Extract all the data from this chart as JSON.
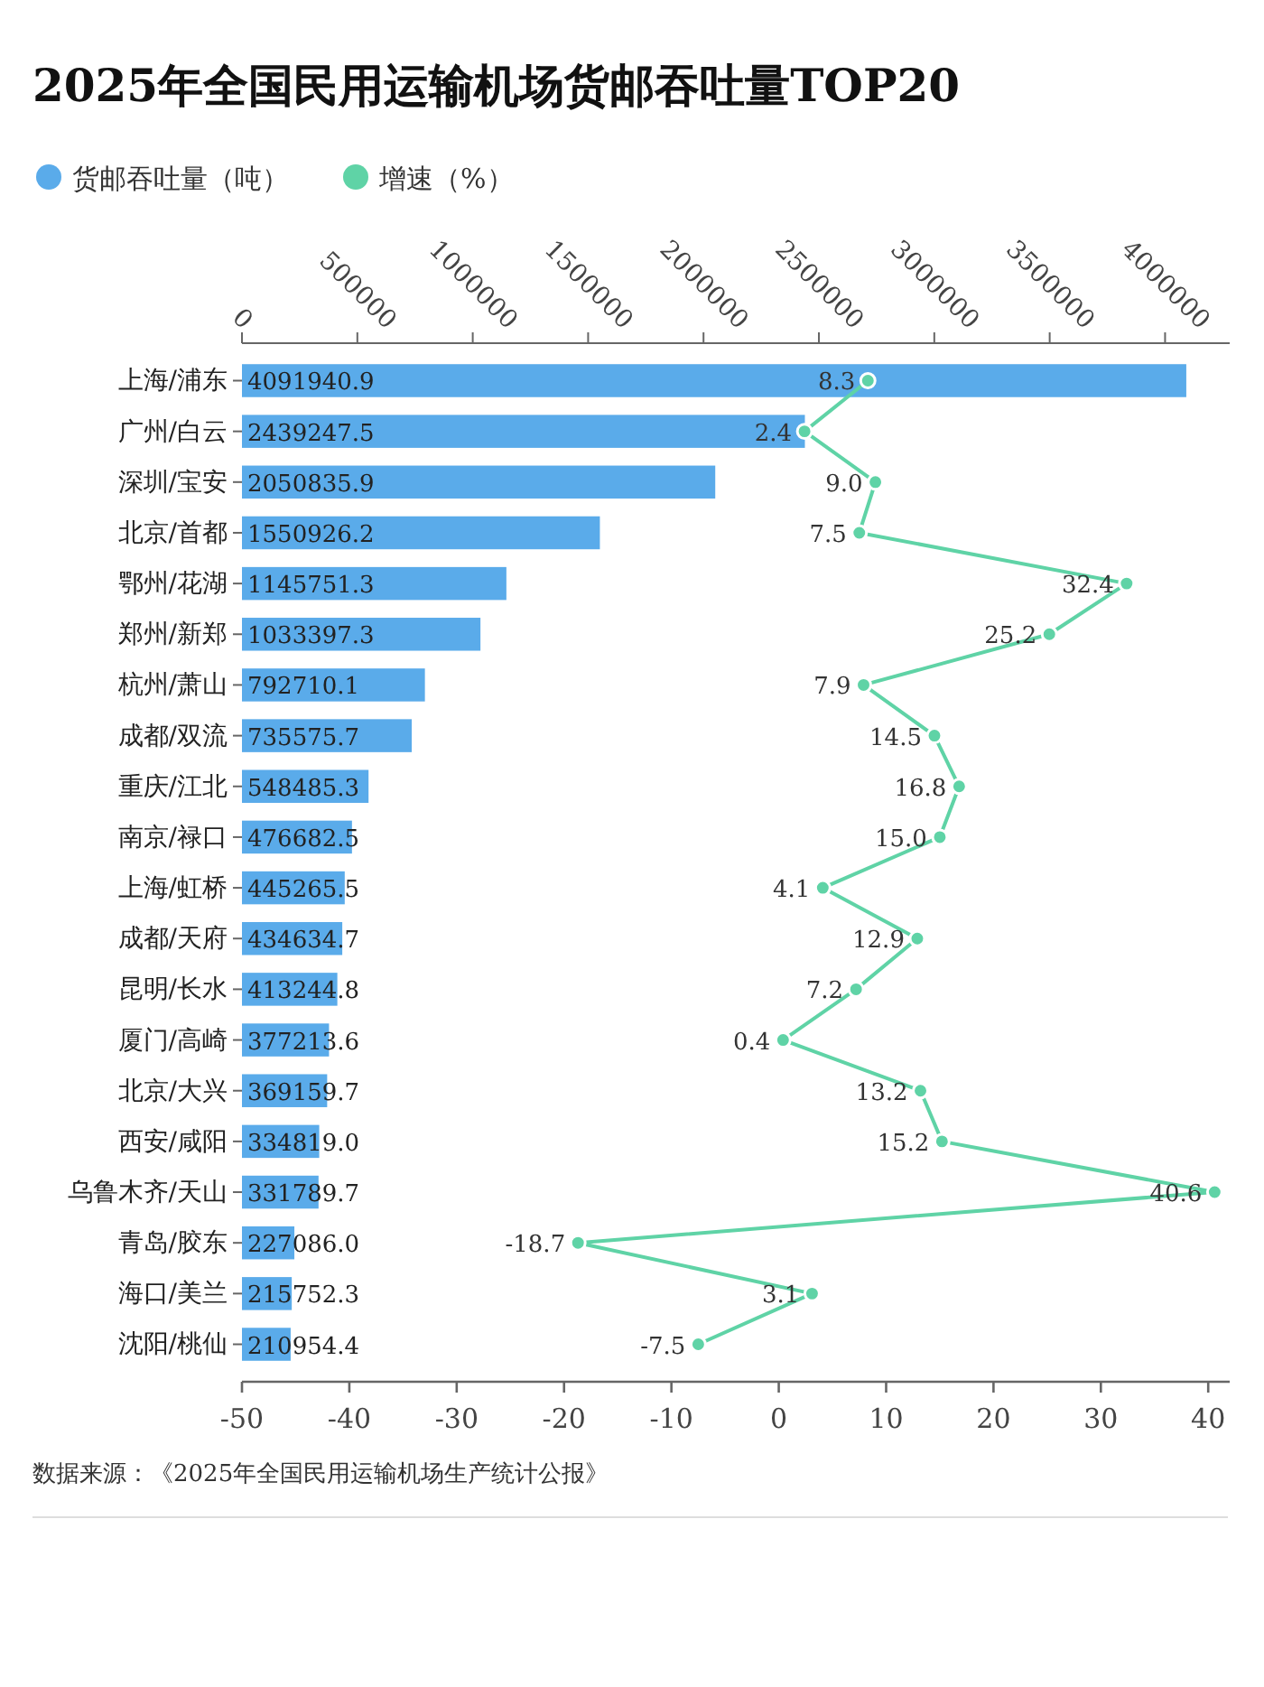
{
  "chart_data": {
    "type": "bar",
    "orientation": "horizontal",
    "title": "2025年全国民用运输机场货邮吞吐量TOP20",
    "categories": [
      "上海/浦东",
      "广州/白云",
      "深圳/宝安",
      "北京/首都",
      "鄂州/花湖",
      "郑州/新郑",
      "杭州/萧山",
      "成都/双流",
      "重庆/江北",
      "南京/禄口",
      "上海/虹桥",
      "成都/天府",
      "昆明/长水",
      "厦门/高崎",
      "北京/大兴",
      "西安/咸阳",
      "乌鲁木齐/天山",
      "青岛/胶东",
      "海口/美兰",
      "沈阳/桃仙"
    ],
    "series": [
      {
        "name": "货邮吞吐量（吨）",
        "axis": "x2",
        "color": "#5aabea",
        "values": [
          4091940.9,
          2439247.5,
          2050835.9,
          1550926.2,
          1145751.3,
          1033397.3,
          792710.1,
          735575.7,
          548485.3,
          476682.5,
          445265.5,
          434634.7,
          413244.8,
          377213.6,
          369159.7,
          334819.0,
          331789.7,
          227086.0,
          215752.3,
          210954.4
        ],
        "value_labels": [
          "4091940.9",
          "2439247.5",
          "2050835.9",
          "1550926.2",
          "1145751.3",
          "1033397.3",
          "792710.1",
          "735575.7",
          "548485.3",
          "476682.5",
          "445265.5",
          "434634.7",
          "413244.8",
          "377213.6",
          "369159.7",
          "334819.0",
          "331789.7",
          "227086.0",
          "215752.3",
          "210954.4"
        ]
      },
      {
        "name": "增速（%）",
        "type": "line",
        "color": "#5fd3a6",
        "values": [
          8.3,
          2.4,
          9.0,
          7.5,
          32.4,
          25.2,
          7.9,
          14.5,
          16.8,
          15.0,
          4.1,
          12.9,
          7.2,
          0.4,
          13.2,
          15.2,
          40.6,
          -18.7,
          3.1,
          -7.5
        ],
        "value_labels": [
          "8.3",
          "2.4",
          "9.0",
          "7.5",
          "32.4",
          "25.2",
          "7.9",
          "14.5",
          "16.8",
          "15.0",
          "4.1",
          "12.9",
          "7.2",
          "0.4",
          "13.2",
          "15.2",
          "40.6",
          "-18.7",
          "3.1",
          "-7.5"
        ]
      }
    ],
    "xlim": [
      -50,
      42
    ],
    "xticks": [
      -50,
      -40,
      -30,
      -20,
      -10,
      0,
      10,
      20,
      30,
      40
    ],
    "x2lim": [
      0,
      4280000
    ],
    "x2ticks": [
      0,
      500000,
      1000000,
      1500000,
      2000000,
      2500000,
      3000000,
      3500000,
      4000000
    ],
    "legend": "top left",
    "marker": "circle",
    "annotations": [
      "数据来源：《2025年全国民用运输机场生产统计公报》"
    ]
  }
}
